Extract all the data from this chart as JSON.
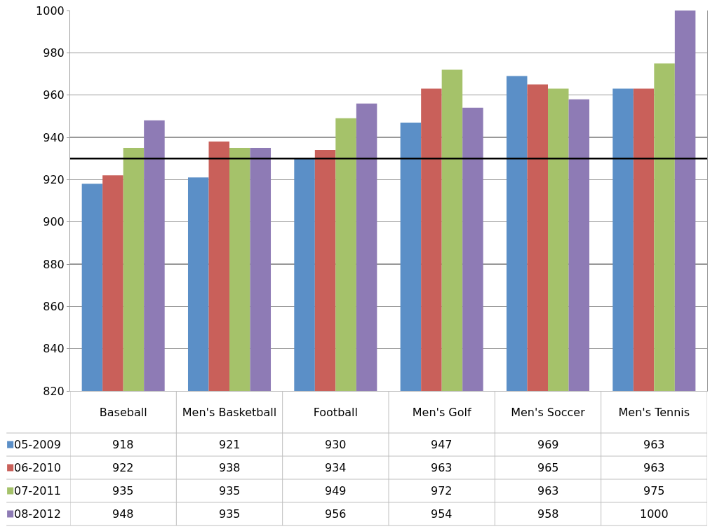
{
  "chart_data": {
    "type": "bar",
    "categories": [
      "Baseball",
      "Men's Basketball",
      "Football",
      "Men's Golf",
      "Men's Soccer",
      "Men's Tennis"
    ],
    "series": [
      {
        "name": "05-2009",
        "color": "#5b8fc7",
        "values": [
          918,
          921,
          930,
          947,
          969,
          963
        ]
      },
      {
        "name": "06-2010",
        "color": "#c9605a",
        "values": [
          922,
          938,
          934,
          963,
          965,
          963
        ]
      },
      {
        "name": "07-2011",
        "color": "#a5c26a",
        "values": [
          935,
          935,
          949,
          972,
          963,
          975
        ]
      },
      {
        "name": "08-2012",
        "color": "#8e7bb5",
        "values": [
          948,
          935,
          956,
          954,
          958,
          1000
        ]
      }
    ],
    "ylim": [
      820,
      1000
    ],
    "yticks": [
      820,
      840,
      860,
      880,
      900,
      920,
      940,
      960,
      980,
      1000
    ],
    "grid": "y",
    "data_labels": true,
    "legend": "bottom",
    "ref_lines": [
      {
        "axis": "y",
        "value": 930,
        "color": "#000000"
      }
    ]
  }
}
